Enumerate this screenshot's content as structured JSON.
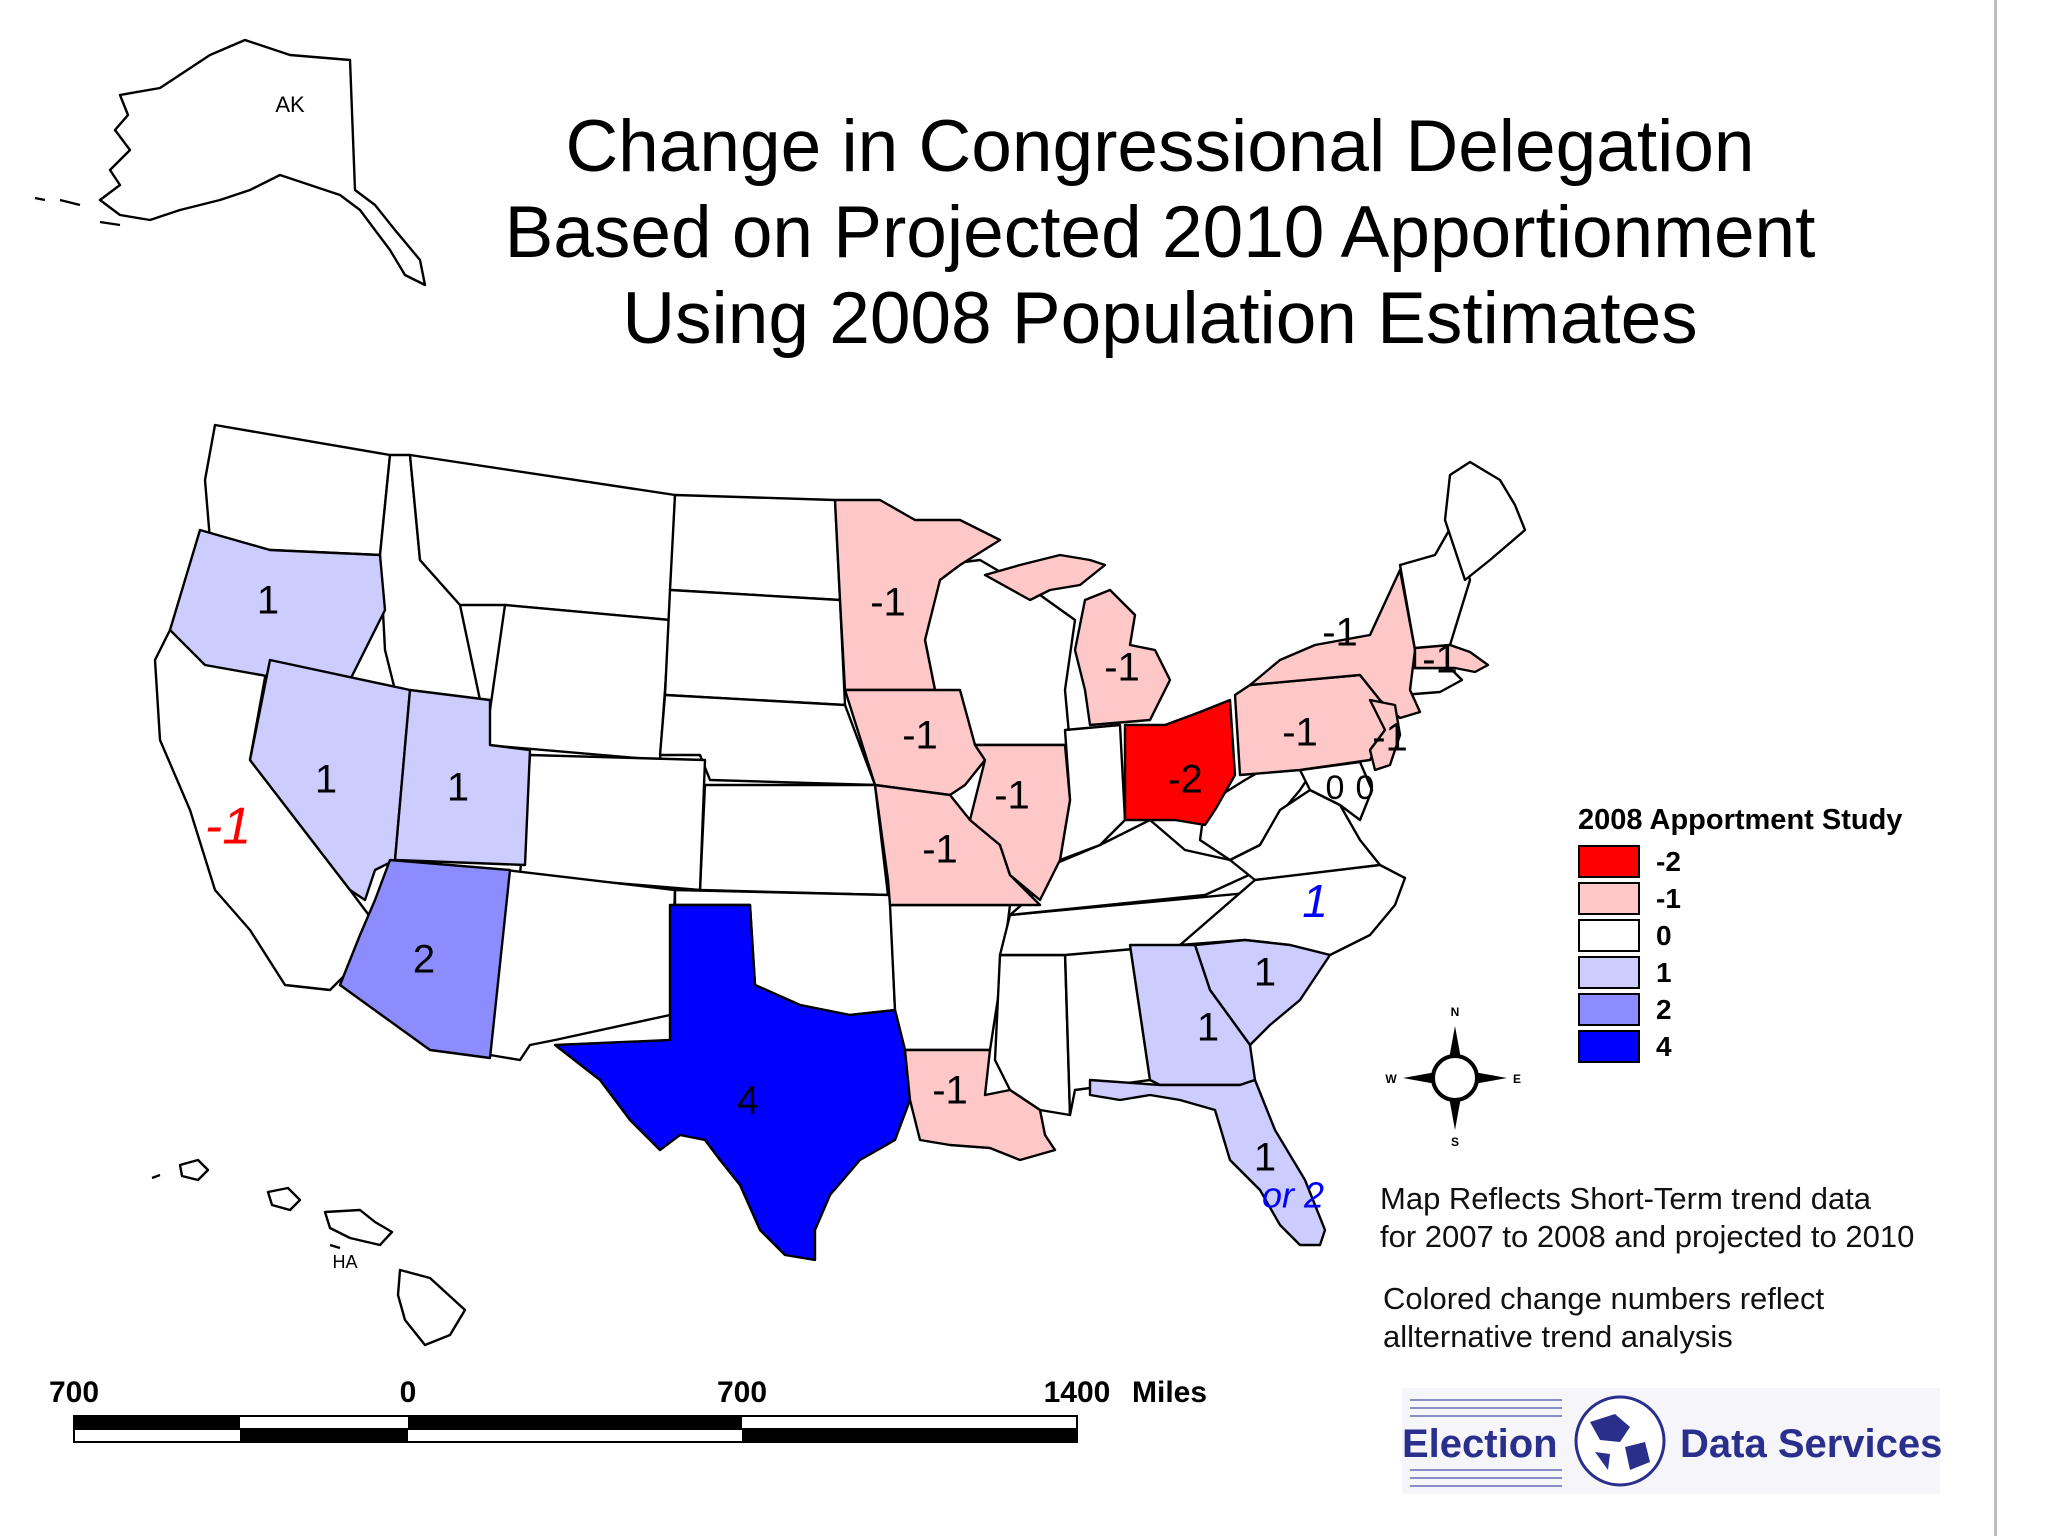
{
  "title": {
    "line1": "Change in Congressional Delegation",
    "line2": "Based on Projected 2010 Apportionment",
    "line3": "Using 2008 Population Estimates"
  },
  "inset_labels": {
    "alaska": "AK",
    "hawaii": "HA"
  },
  "legend": {
    "title": "2008 Apportment Study",
    "items": [
      {
        "label": "-2",
        "color": "#ff0000"
      },
      {
        "label": "-1",
        "color": "#ffc8c8"
      },
      {
        "label": "0",
        "color": "#ffffff"
      },
      {
        "label": "1",
        "color": "#ccccff"
      },
      {
        "label": "2",
        "color": "#8c8cff"
      },
      {
        "label": "4",
        "color": "#0000ff"
      }
    ]
  },
  "states": [
    {
      "name": "Oregon",
      "change": 1
    },
    {
      "name": "Nevada",
      "change": 1
    },
    {
      "name": "Utah",
      "change": 1
    },
    {
      "name": "Arizona",
      "change": 2
    },
    {
      "name": "Texas",
      "change": 4
    },
    {
      "name": "Georgia",
      "change": 1
    },
    {
      "name": "South Carolina",
      "change": 1
    },
    {
      "name": "Florida",
      "change": 1
    },
    {
      "name": "Minnesota",
      "change": -1
    },
    {
      "name": "Iowa",
      "change": -1
    },
    {
      "name": "Missouri",
      "change": -1
    },
    {
      "name": "Illinois",
      "change": -1
    },
    {
      "name": "Michigan",
      "change": -1
    },
    {
      "name": "Ohio",
      "change": -2
    },
    {
      "name": "Pennsylvania",
      "change": -1
    },
    {
      "name": "New York",
      "change": -1
    },
    {
      "name": "Massachusetts",
      "change": -1
    },
    {
      "name": "New Jersey",
      "change": -1
    },
    {
      "name": "Louisiana",
      "change": -1
    }
  ],
  "map_labels": {
    "oregon": "1",
    "nevada": "1",
    "utah": "1",
    "arizona": "2",
    "texas": "4",
    "minnesota": "-1",
    "iowa": "-1",
    "missouri": "-1",
    "illinois": "-1",
    "michigan": "-1",
    "ohio": "-2",
    "pennsylvania": "-1",
    "new_york": "-1",
    "massachusetts": "-1",
    "new_jersey": "-1",
    "louisiana": "-1",
    "georgia": "1",
    "south_carolina": "1",
    "florida": "1",
    "maryland": "0",
    "virginia": "0"
  },
  "alternative_labels": {
    "california": "-1",
    "north_carolina": "1",
    "florida": "or 2",
    "negative_color": "#ff0000",
    "positive_color": "#0000ff"
  },
  "compass": {
    "n": "N",
    "s": "S",
    "e": "E",
    "w": "W"
  },
  "notes": {
    "line1": "Map Reflects Short-Term trend data",
    "line2": "for 2007 to 2008 and projected to 2010",
    "line3": "Colored change numbers reflect",
    "line4": "allternative trend analysis"
  },
  "scale": {
    "ticks": [
      "700",
      "0",
      "700",
      "1400"
    ],
    "units": "Miles"
  },
  "logo": {
    "left": "Election",
    "right": "Data Services"
  }
}
